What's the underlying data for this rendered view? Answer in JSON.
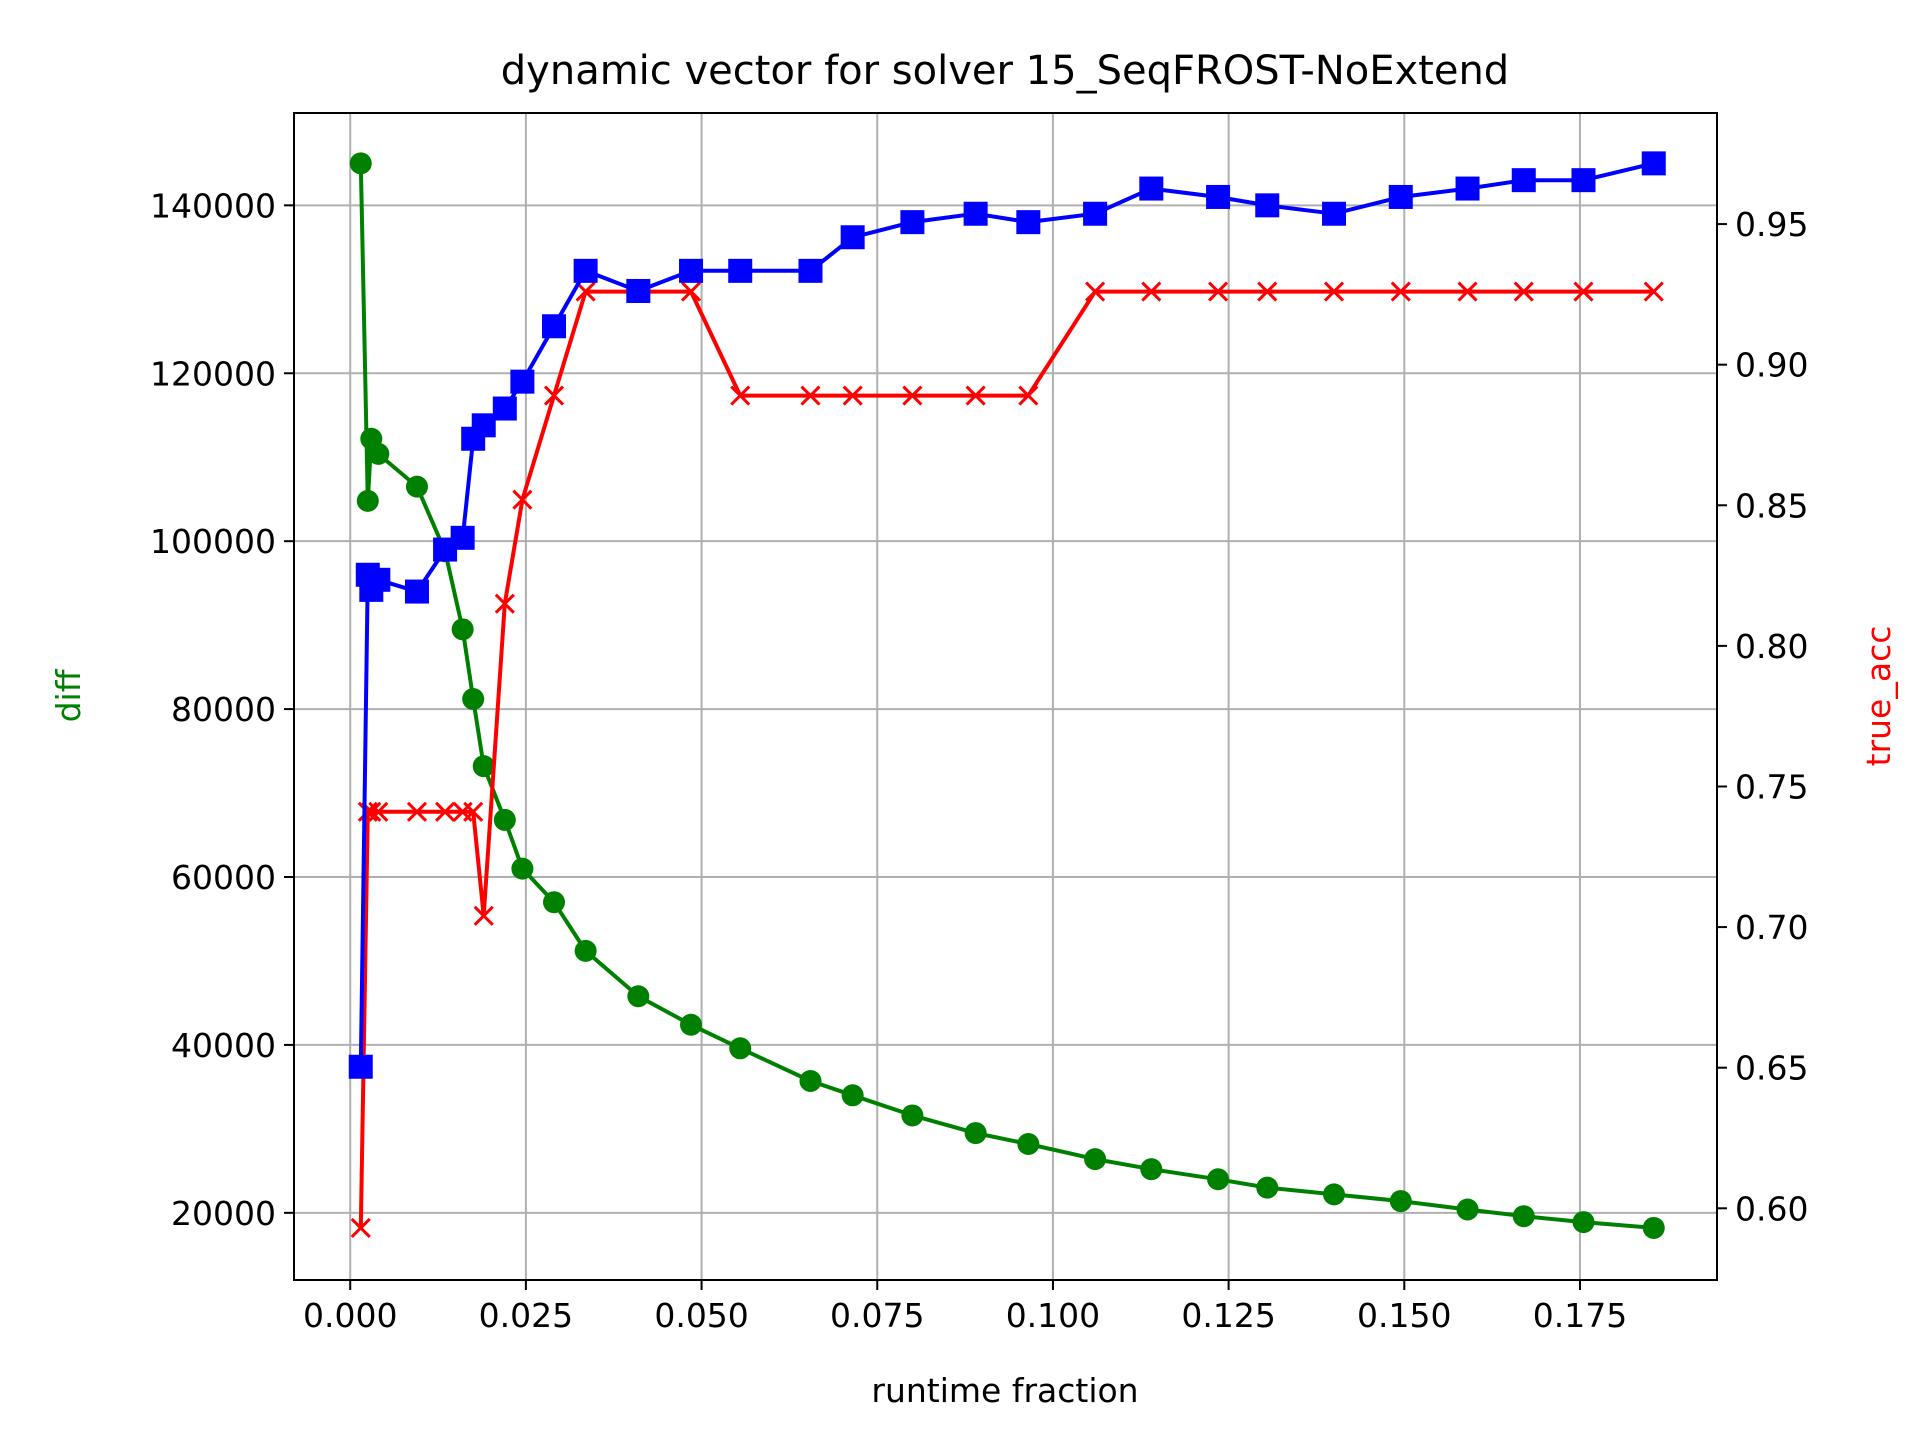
{
  "chart_data": {
    "type": "line",
    "title": "dynamic vector for solver 15_SeqFROST-NoExtend",
    "xlabel": "runtime fraction",
    "ylabel_left": "diff",
    "ylabel_right": "true_acc",
    "xlim": [
      -0.008,
      0.1945
    ],
    "ylim_left": [
      12000,
      151000
    ],
    "ylim_right": [
      0.5745,
      0.9895
    ],
    "grid": true,
    "x_ticks": [
      "0.000",
      "0.025",
      "0.050",
      "0.075",
      "0.100",
      "0.125",
      "0.150",
      "0.175"
    ],
    "y_left_ticks": [
      "20000",
      "40000",
      "60000",
      "80000",
      "100000",
      "120000",
      "140000"
    ],
    "y_right_ticks": [
      "0.60",
      "0.65",
      "0.70",
      "0.75",
      "0.80",
      "0.85",
      "0.90",
      "0.95"
    ],
    "colors": {
      "diff": "#008000",
      "blue_series": "#0000ff",
      "true_acc": "#ff0000",
      "grid": "#b0b0b0"
    },
    "series": [
      {
        "axis": "left",
        "marker": "circle",
        "color": "#008000",
        "x": [
          0.0015,
          0.0025,
          0.003,
          0.004,
          0.0095,
          0.0135,
          0.016,
          0.0175,
          0.019,
          0.022,
          0.0245,
          0.029,
          0.0335,
          0.041,
          0.0485,
          0.0555,
          0.0655,
          0.0715,
          0.08,
          0.089,
          0.0965,
          0.106,
          0.114,
          0.1235,
          0.1305,
          0.14,
          0.1495,
          0.159,
          0.167,
          0.1755,
          0.1855
        ],
        "y": [
          145000,
          104800,
          112200,
          110400,
          106500,
          98800,
          89500,
          81200,
          73200,
          66800,
          61000,
          57000,
          51200,
          45800,
          42400,
          39600,
          35700,
          34000,
          31600,
          29500,
          28200,
          26400,
          25200,
          24000,
          23000,
          22200,
          21400,
          20400,
          19600,
          18900,
          18200
        ]
      },
      {
        "axis": "left",
        "marker": "square",
        "color": "#0000ff",
        "x": [
          0.0015,
          0.0025,
          0.003,
          0.004,
          0.0095,
          0.0135,
          0.016,
          0.0175,
          0.019,
          0.022,
          0.0245,
          0.029,
          0.0335,
          0.041,
          0.0485,
          0.0555,
          0.0655,
          0.0715,
          0.08,
          0.089,
          0.0965,
          0.106,
          0.114,
          0.1235,
          0.1305,
          0.14,
          0.1495,
          0.159,
          0.167,
          0.1755,
          0.1855
        ],
        "y": [
          37400,
          96000,
          94200,
          95400,
          94000,
          99000,
          100400,
          112200,
          113800,
          115800,
          119000,
          125600,
          132200,
          129800,
          132200,
          132200,
          132200,
          136200,
          138000,
          139000,
          138000,
          139000,
          142000,
          141000,
          140000,
          139000,
          141000,
          142000,
          143000,
          143000,
          145000
        ]
      },
      {
        "axis": "right",
        "marker": "x",
        "color": "#ff0000",
        "x": [
          0.0015,
          0.0025,
          0.003,
          0.004,
          0.0095,
          0.0135,
          0.016,
          0.0175,
          0.019,
          0.022,
          0.0245,
          0.029,
          0.0335,
          0.041,
          0.0485,
          0.0555,
          0.0655,
          0.0715,
          0.08,
          0.089,
          0.0965,
          0.106,
          0.114,
          0.1235,
          0.1305,
          0.14,
          0.1495,
          0.159,
          0.167,
          0.1755,
          0.1855
        ],
        "y": [
          0.593,
          0.741,
          0.741,
          0.741,
          0.741,
          0.741,
          0.741,
          0.741,
          0.704,
          0.815,
          0.852,
          0.889,
          0.926,
          0.926,
          0.926,
          0.889,
          0.889,
          0.889,
          0.889,
          0.889,
          0.889,
          0.926,
          0.926,
          0.926,
          0.926,
          0.926,
          0.926,
          0.926,
          0.926,
          0.926,
          0.926
        ]
      }
    ]
  }
}
